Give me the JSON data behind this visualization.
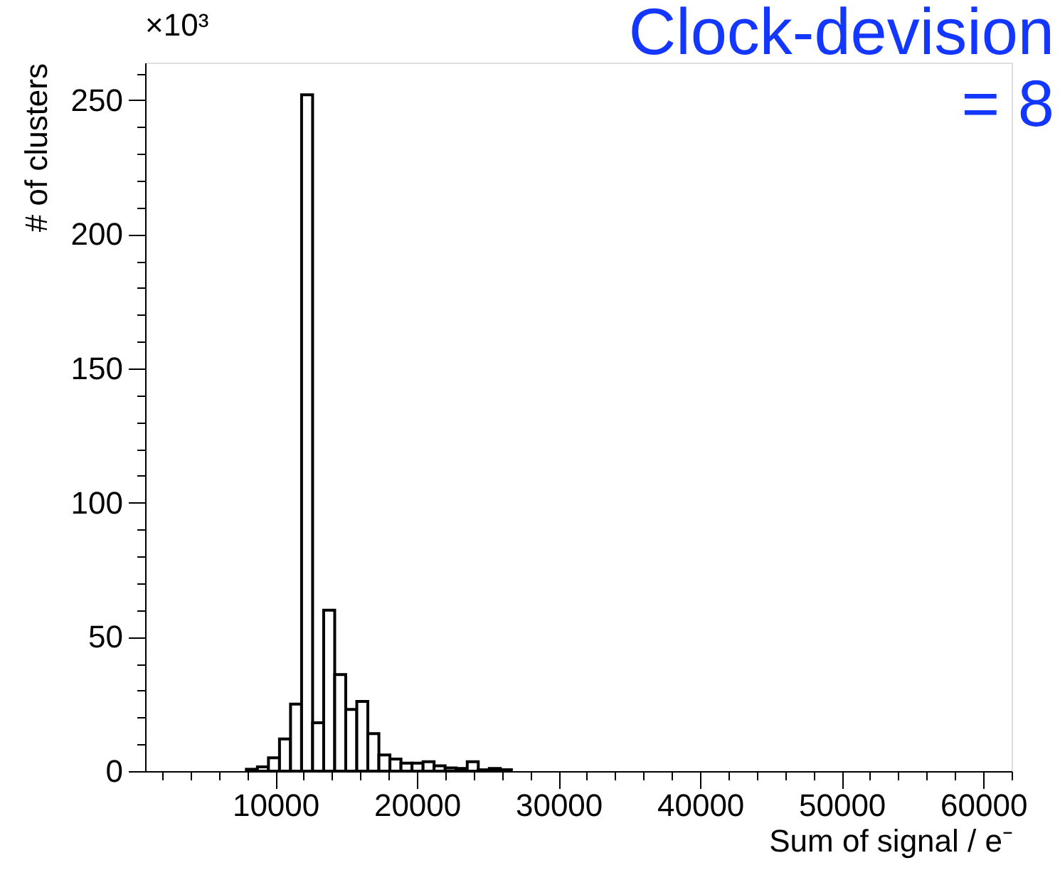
{
  "chart_data": {
    "type": "histogram",
    "xlabel": "Sum of signal / e⁻",
    "ylabel": "# of clusters",
    "annotations": [
      "×10³",
      "Clock-devision\n= 8"
    ],
    "bins": [
      7950,
      8730,
      9510,
      10290,
      11070,
      11850,
      12630,
      13410,
      14190,
      14970,
      15750,
      16530,
      17310,
      18090,
      18870,
      19650,
      20430,
      21210,
      21990,
      22770,
      23550,
      24330,
      25110,
      25890,
      26670
    ],
    "values": [
      0.7,
      1.6,
      5,
      12,
      25,
      252,
      18,
      60,
      36,
      23,
      26,
      14,
      6,
      4.5,
      3,
      3,
      3.5,
      2,
      1.2,
      1,
      3.5,
      0.5,
      1,
      0.5
    ],
    "color": "#000000",
    "xlim": [
      800,
      62000
    ],
    "ylim": [
      0,
      264
    ],
    "xticks": [
      {
        "value": 2000,
        "label": null
      },
      {
        "value": 4000,
        "label": null
      },
      {
        "value": 6000,
        "label": null
      },
      {
        "value": 8000,
        "label": null
      },
      10000,
      {
        "value": 12000,
        "label": null
      },
      {
        "value": 14000,
        "label": null
      },
      {
        "value": 16000,
        "label": null
      },
      {
        "value": 18000,
        "label": null
      },
      20000,
      {
        "value": 22000,
        "label": null
      },
      {
        "value": 24000,
        "label": null
      },
      {
        "value": 26000,
        "label": null
      },
      {
        "value": 28000,
        "label": null
      },
      30000,
      {
        "value": 32000,
        "label": null
      },
      {
        "value": 34000,
        "label": null
      },
      {
        "value": 36000,
        "label": null
      },
      {
        "value": 38000,
        "label": null
      },
      40000,
      {
        "value": 42000,
        "label": null
      },
      {
        "value": 44000,
        "label": null
      },
      {
        "value": 46000,
        "label": null
      },
      {
        "value": 48000,
        "label": null
      },
      50000,
      {
        "value": 52000,
        "label": null
      },
      {
        "value": 54000,
        "label": null
      },
      {
        "value": 56000,
        "label": null
      },
      {
        "value": 58000,
        "label": null
      },
      60000,
      {
        "value": 62000,
        "label": null
      }
    ],
    "yticks": [
      0,
      {
        "value": 10,
        "label": null
      },
      {
        "value": 20,
        "label": null
      },
      {
        "value": 30,
        "label": null
      },
      {
        "value": 40,
        "label": null
      },
      50,
      {
        "value": 60,
        "label": null
      },
      {
        "value": 70,
        "label": null
      },
      {
        "value": 80,
        "label": null
      },
      {
        "value": 90,
        "label": null
      },
      100,
      {
        "value": 110,
        "label": null
      },
      {
        "value": 120,
        "label": null
      },
      {
        "value": 130,
        "label": null
      },
      {
        "value": 140,
        "label": null
      },
      150,
      {
        "value": 160,
        "label": null
      },
      {
        "value": 170,
        "label": null
      },
      {
        "value": 180,
        "label": null
      },
      {
        "value": 190,
        "label": null
      },
      200,
      {
        "value": 210,
        "label": null
      },
      {
        "value": 220,
        "label": null
      },
      {
        "value": 230,
        "label": null
      },
      {
        "value": 240,
        "label": null
      },
      250,
      {
        "value": 260,
        "label": null
      }
    ]
  }
}
